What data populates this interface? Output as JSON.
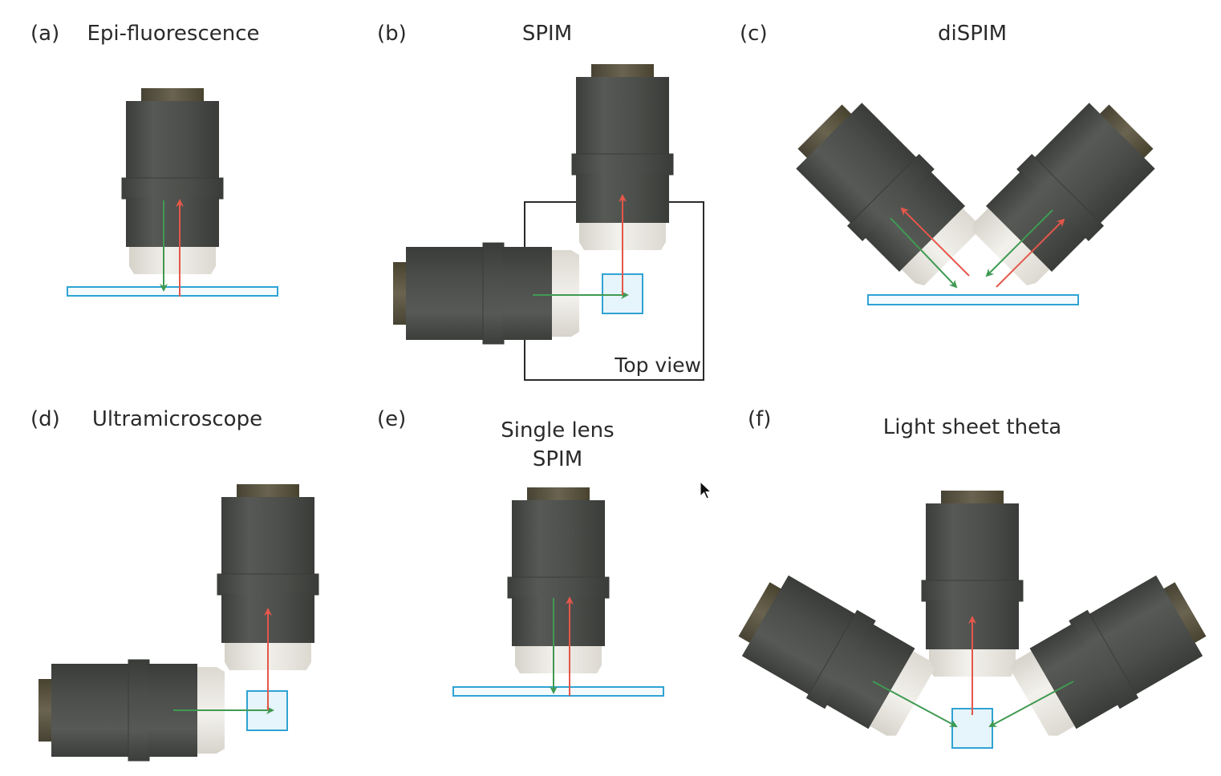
{
  "panels": [
    {
      "id": "a",
      "letter": "(a)",
      "title": "Epi-fluorescence"
    },
    {
      "id": "b",
      "letter": "(b)",
      "title": "SPIM",
      "inset_label": "Top view"
    },
    {
      "id": "c",
      "letter": "(c)",
      "title": "diSPIM"
    },
    {
      "id": "d",
      "letter": "(d)",
      "title": "Ultramicroscope"
    },
    {
      "id": "e",
      "letter": "(e)",
      "title_line1": "Single lens",
      "title_line2": "SPIM"
    },
    {
      "id": "f",
      "letter": "(f)",
      "title": "Light sheet theta"
    }
  ],
  "colors": {
    "objective_body": "#4d4f4c",
    "objective_cap": "#5a5546",
    "objective_tip": "#ebe8e1",
    "sample": "#2fa3d4",
    "sample_fill": "#e6f4fb",
    "illumination_arrow": "#3f9a52",
    "detection_arrow": "#e5574a"
  },
  "icons": {
    "cursor": "mouse-pointer-icon"
  }
}
